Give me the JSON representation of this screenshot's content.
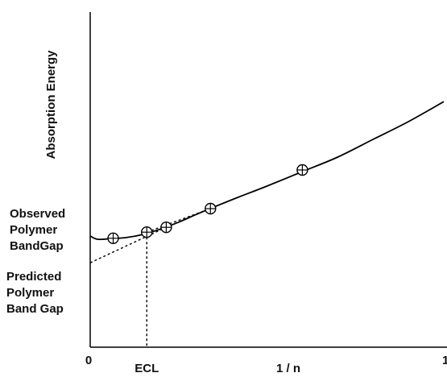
{
  "chart_data": {
    "type": "line",
    "title": "",
    "xlabel": "1 / n",
    "ylabel": "Absorption Energy",
    "x_ticks": [
      {
        "value": 0,
        "label": "0"
      },
      {
        "value": 1,
        "label": "1"
      }
    ],
    "xlim": [
      0,
      1
    ],
    "ylim": [
      0,
      1
    ],
    "grid": false,
    "series": [
      {
        "style": "solid-curve",
        "x": [
          0.0,
          0.02,
          0.05,
          0.1,
          0.15,
          0.2,
          0.25,
          0.3,
          0.35,
          0.42,
          0.5,
          0.6,
          0.7,
          0.8,
          0.9,
          1.0
        ],
        "y": [
          0.345,
          0.335,
          0.336,
          0.34,
          0.35,
          0.367,
          0.388,
          0.412,
          0.435,
          0.466,
          0.5,
          0.545,
          0.59,
          0.645,
          0.7,
          0.762
        ]
      },
      {
        "style": "markers",
        "x": [
          0.065,
          0.16,
          0.215,
          0.34,
          0.6
        ],
        "y": [
          0.338,
          0.357,
          0.372,
          0.43,
          0.55
        ]
      },
      {
        "style": "dashed-extrapolation",
        "x": [
          0.0,
          0.215
        ],
        "y": [
          0.262,
          0.372
        ]
      },
      {
        "style": "dashed-extrapolation",
        "x": [
          0.16,
          0.34
        ],
        "y": [
          0.357,
          0.43
        ]
      }
    ],
    "annotations": {
      "ecl": {
        "label": "ECL",
        "x": 0.16
      },
      "observed": {
        "label_lines": [
          "Observed",
          "Polymer",
          "BandGap"
        ],
        "y": 0.338
      },
      "predicted": {
        "label_lines": [
          "Predicted",
          "Polymer",
          "Band Gap"
        ],
        "y": 0.262
      }
    }
  }
}
